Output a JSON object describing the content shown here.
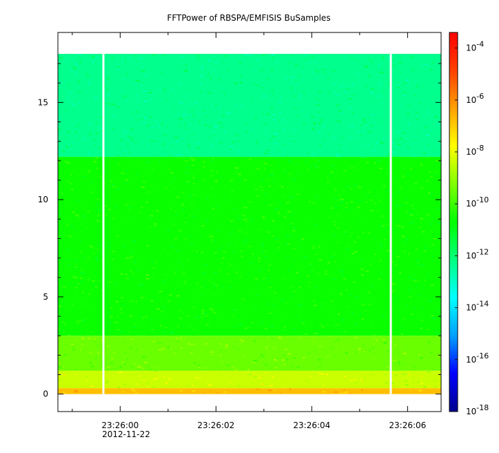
{
  "chart_data": {
    "type": "heatmap",
    "title": "FFTPower of RBSPA/EMFISIS  BuSamples",
    "xlabel": "",
    "ylabel": "",
    "x_tick_labels": [
      "23:26:00",
      "23:26:02",
      "23:26:04",
      "23:26:06"
    ],
    "x_sub_label": "2012-11-22",
    "x_ticks_seconds": [
      0,
      2,
      4,
      6
    ],
    "xlim_seconds": [
      -1.3,
      6.7
    ],
    "y_ticks": [
      0,
      5,
      10,
      15
    ],
    "ylim": [
      -0.9,
      18.6
    ],
    "data_top": 17.5,
    "data_gaps_seconds": [
      -0.35,
      5.65
    ],
    "colorbar": {
      "scale": "log",
      "range": [
        -18,
        -3.4
      ],
      "tick_exponents": [
        -4,
        -6,
        -8,
        -10,
        -12,
        -14,
        -16,
        -18
      ],
      "tick_base": "10",
      "colors": [
        "#00008f",
        "#0000ff",
        "#00a0ff",
        "#00ffff",
        "#00ff80",
        "#00ff00",
        "#80ff00",
        "#ffff00",
        "#ffa000",
        "#ff4000",
        "#ff0000"
      ]
    },
    "bands": [
      {
        "y": [
          12.2,
          17.5
        ],
        "log_power": -12.3
      },
      {
        "y": [
          3.0,
          12.2
        ],
        "log_power": -10.6
      },
      {
        "y": [
          1.2,
          3.0
        ],
        "log_power": -9.5
      },
      {
        "y": [
          0.3,
          1.2
        ],
        "log_power": -8.4
      },
      {
        "y": [
          0,
          0.3
        ],
        "log_power": -6.8
      }
    ]
  }
}
